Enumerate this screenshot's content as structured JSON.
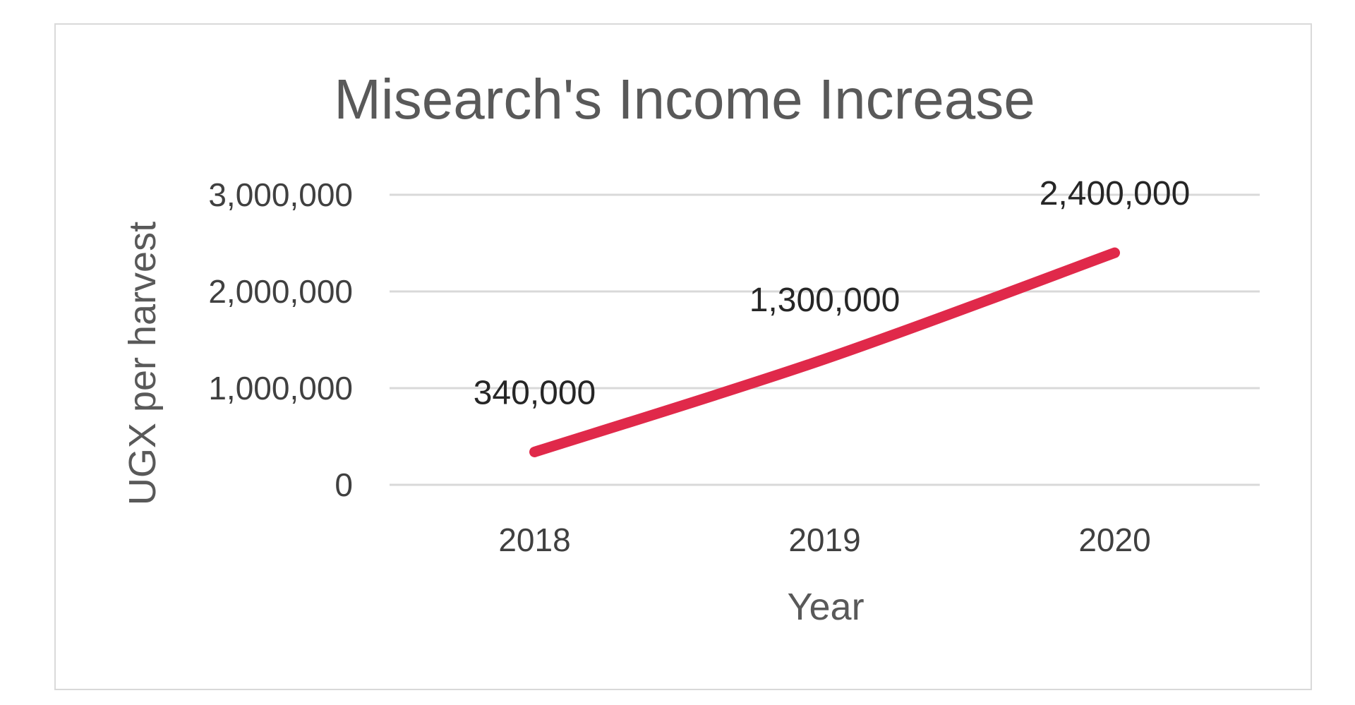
{
  "chart_data": {
    "type": "line",
    "title": "Misearch's Income Increase",
    "xlabel": "Year",
    "ylabel": "UGX per harvest",
    "categories": [
      "2018",
      "2019",
      "2020"
    ],
    "series": [
      {
        "values": [
          340000,
          1300000,
          2400000
        ],
        "color": "#e0294a"
      }
    ],
    "data_labels": [
      "340,000",
      "1,300,000",
      "2,400,000"
    ],
    "ylim": [
      0,
      3000000
    ],
    "yticks": [
      0,
      1000000,
      2000000,
      3000000
    ],
    "ytick_labels": [
      "0",
      "1,000,000",
      "2,000,000",
      "3,000,000"
    ],
    "grid": true,
    "legend": "none"
  }
}
